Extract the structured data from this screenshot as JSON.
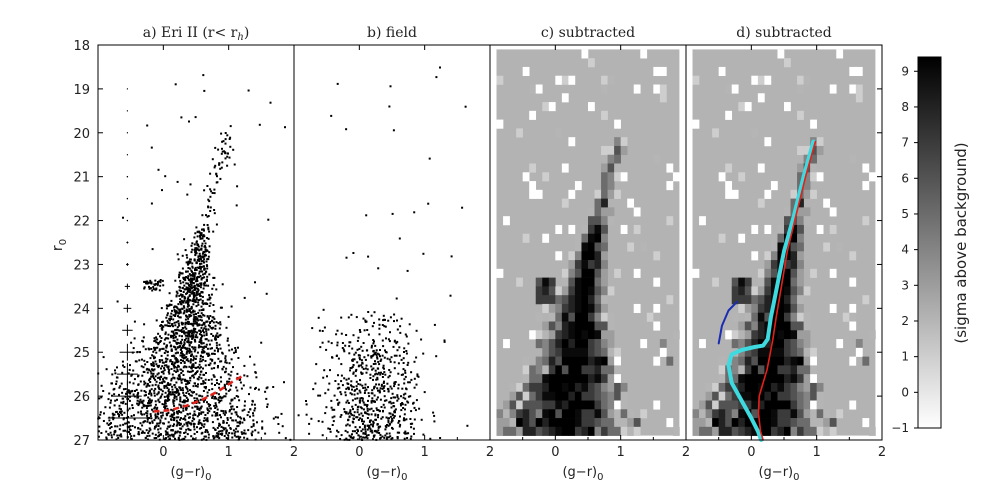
{
  "chart_data": {
    "type": "scatter",
    "panels": [
      {
        "id": "a",
        "title": "a) Eri II (r< r",
        "title_sub": "h",
        "title_end": ")",
        "kind": "cmd_scatter"
      },
      {
        "id": "b",
        "title": "b) field",
        "kind": "cmd_scatter"
      },
      {
        "id": "c",
        "title": "c) subtracted",
        "kind": "hess_diagram"
      },
      {
        "id": "d",
        "title": "d) subtracted",
        "kind": "hess_diagram_with_isochrones"
      }
    ],
    "x_axis": {
      "label_main": "(g−r)",
      "label_sub": "0",
      "range": [
        -1,
        2
      ],
      "ticks": [
        0,
        1,
        2
      ],
      "tick_labels": [
        "0",
        "1",
        "2"
      ]
    },
    "y_axis": {
      "label_main": "r",
      "label_sub": "0",
      "range": [
        18,
        27
      ],
      "inverted": true,
      "ticks": [
        18,
        19,
        20,
        21,
        22,
        23,
        24,
        25,
        26,
        27
      ],
      "tick_labels": [
        "18",
        "19",
        "20",
        "21",
        "22",
        "23",
        "24",
        "25",
        "26",
        "27"
      ]
    },
    "colorbar": {
      "label": "(sigma above background)",
      "range": [
        -1,
        9.4
      ],
      "ticks": [
        -1,
        0,
        1,
        2,
        3,
        4,
        5,
        6,
        7,
        8,
        9
      ],
      "tick_labels": [
        "−1",
        "0",
        "1",
        "2",
        "3",
        "4",
        "5",
        "6",
        "7",
        "8",
        "9"
      ],
      "color_low": "#ffffff",
      "color_high": "#000000"
    },
    "hess_background_color": "#b3b3b3",
    "error_bars": [
      {
        "r": 19.0,
        "xerr": 0.0
      },
      {
        "r": 19.5,
        "xerr": 0.0
      },
      {
        "r": 20.0,
        "xerr": 0.0
      },
      {
        "r": 20.5,
        "xerr": 0.0
      },
      {
        "r": 21.0,
        "xerr": 0.01
      },
      {
        "r": 21.5,
        "xerr": 0.01
      },
      {
        "r": 22.0,
        "xerr": 0.01
      },
      {
        "r": 22.5,
        "xerr": 0.015
      },
      {
        "r": 23.0,
        "xerr": 0.02
      },
      {
        "r": 23.5,
        "xerr": 0.04
      },
      {
        "r": 24.0,
        "xerr": 0.06
      },
      {
        "r": 24.5,
        "xerr": 0.08
      },
      {
        "r": 25.0,
        "xerr": 0.12
      },
      {
        "r": 25.5,
        "xerr": 0.16
      },
      {
        "r": 26.0,
        "xerr": 0.22
      },
      {
        "r": 26.5,
        "xerr": 0.3
      }
    ],
    "error_bar_x": -0.55,
    "completeness_curve": {
      "color": "#e32119",
      "points": [
        [
          -0.15,
          26.35
        ],
        [
          0.1,
          26.32
        ],
        [
          0.35,
          26.22
        ],
        [
          0.6,
          26.08
        ],
        [
          0.85,
          25.88
        ],
        [
          1.05,
          25.68
        ],
        [
          1.2,
          25.55
        ]
      ]
    },
    "isochrones": [
      {
        "name": "cyan",
        "color": "#3fd9e0",
        "width": 4,
        "points": [
          [
            0.95,
            20.2
          ],
          [
            0.8,
            21.0
          ],
          [
            0.65,
            21.9
          ],
          [
            0.5,
            22.7
          ],
          [
            0.38,
            23.6
          ],
          [
            0.3,
            24.2
          ],
          [
            0.25,
            24.7
          ],
          [
            0.18,
            24.85
          ],
          [
            0.05,
            24.88
          ],
          [
            -0.15,
            24.95
          ],
          [
            -0.3,
            25.05
          ],
          [
            -0.35,
            25.3
          ],
          [
            -0.3,
            25.7
          ],
          [
            -0.15,
            26.1
          ],
          [
            0.0,
            26.5
          ],
          [
            0.1,
            26.8
          ],
          [
            0.15,
            27.0
          ]
        ]
      },
      {
        "name": "red",
        "color": "#e32119",
        "width": 1.6,
        "points": [
          [
            0.98,
            20.2
          ],
          [
            0.83,
            21.0
          ],
          [
            0.68,
            21.9
          ],
          [
            0.55,
            22.7
          ],
          [
            0.45,
            23.6
          ],
          [
            0.38,
            24.2
          ],
          [
            0.33,
            24.7
          ],
          [
            0.28,
            25.1
          ],
          [
            0.24,
            25.4
          ],
          [
            0.18,
            25.7
          ],
          [
            0.12,
            26.0
          ],
          [
            0.11,
            26.4
          ],
          [
            0.14,
            26.8
          ],
          [
            0.18,
            27.0
          ]
        ]
      },
      {
        "name": "blue",
        "color": "#1a2db0",
        "width": 2,
        "points": [
          [
            -0.5,
            24.8
          ],
          [
            -0.45,
            24.4
          ],
          [
            -0.35,
            24.05
          ],
          [
            -0.22,
            23.85
          ]
        ]
      }
    ]
  }
}
